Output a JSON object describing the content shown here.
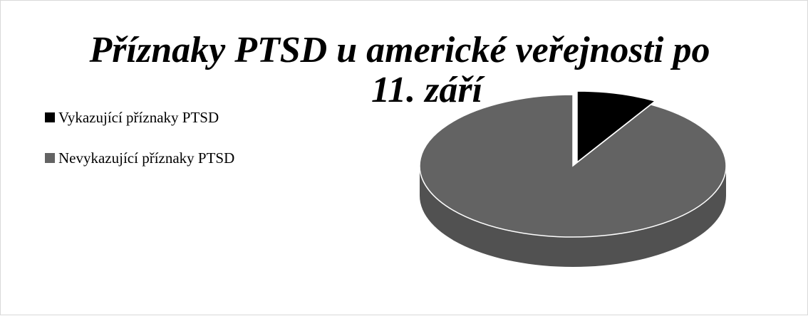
{
  "chart_data": {
    "type": "pie",
    "title_lines": [
      "Příznaky PTSD u americké veřejnosti po",
      "11. září"
    ],
    "categories": [
      "Vykazující příznaky PTSD",
      "Nevykazující příznaky PTSD"
    ],
    "values": [
      8.5,
      91.5
    ],
    "colors": [
      "#000000",
      "#636363"
    ],
    "legend_position": "left",
    "style": "3d-exploded"
  }
}
